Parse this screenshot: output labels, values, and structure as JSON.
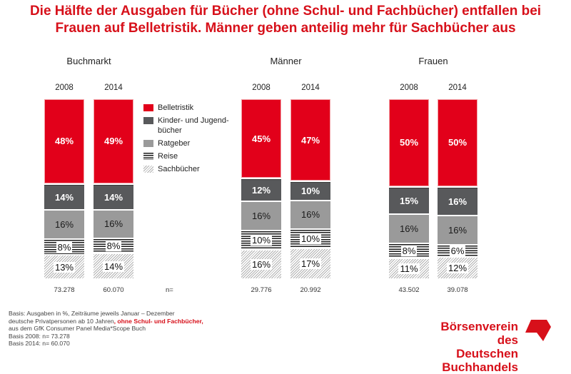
{
  "title": {
    "line1": "Die Hälfte der Ausgaben für Bücher (ohne Schul- und Fachbücher) entfallen bei",
    "line2": "Frauen auf Belletristik. Männer geben anteilig mehr für Sachbücher aus"
  },
  "colors": {
    "accent": "#e2001a",
    "title": "#d7101a",
    "kinder": "#58595b",
    "ratgeber": "#9a9a9a"
  },
  "chart_data": {
    "type": "bar",
    "stacked": true,
    "unit": "%",
    "title": "Die Hälfte der Ausgaben für Bücher (ohne Schul- und Fachbücher) entfallen bei Frauen auf Belletristik. Männer geben anteilig mehr für Sachbücher aus",
    "legend_position": "right-of-first-group",
    "legend": [
      "Belletristik",
      "Kinder- und Jugend-bücher",
      "Ratgeber",
      "Reise",
      "Sachbücher"
    ],
    "n_label": "n=",
    "groups": [
      {
        "name": "Buchmarkt",
        "bars": [
          {
            "year": "2008",
            "n": "73.278",
            "values": [
              48,
              14,
              16,
              8,
              13
            ]
          },
          {
            "year": "2014",
            "n": "60.070",
            "values": [
              49,
              14,
              16,
              8,
              14
            ]
          }
        ]
      },
      {
        "name": "Männer",
        "bars": [
          {
            "year": "2008",
            "n": "29.776",
            "values": [
              45,
              12,
              16,
              10,
              16
            ]
          },
          {
            "year": "2014",
            "n": "20.992",
            "values": [
              47,
              10,
              16,
              10,
              17
            ]
          }
        ]
      },
      {
        "name": "Frauen",
        "bars": [
          {
            "year": "2008",
            "n": "43.502",
            "values": [
              50,
              15,
              16,
              8,
              11
            ]
          },
          {
            "year": "2014",
            "n": "39.078",
            "values": [
              50,
              16,
              16,
              6,
              12
            ]
          }
        ]
      }
    ]
  },
  "legend": {
    "items": [
      {
        "label": "Belletristik",
        "key": "bel"
      },
      {
        "label": "Kinder- und Jugend-bücher",
        "key": "kin"
      },
      {
        "label": "Ratgeber",
        "key": "rat"
      },
      {
        "label": "Reise",
        "key": "rei"
      },
      {
        "label": "Sachbücher",
        "key": "sac"
      }
    ]
  },
  "footnote": {
    "line1": "Basis: Ausgaben in %, Zeiträume jeweils Januar – Dezember",
    "line2_a": "deutsche Privatpersonen ab 10 Jahren",
    "line2_b": ", ohne Schul- und Fachbücher,",
    "line3": "aus dem GfK Consumer Panel Media*Scope Buch",
    "line4": "Basis 2008: n= 73.278",
    "line5": "Basis 2014: n= 60.070"
  },
  "logo": {
    "line1": "Börsenverein des",
    "line2": "Deutschen Buchhandels",
    "icon": "boersenverein-logo-mark"
  }
}
